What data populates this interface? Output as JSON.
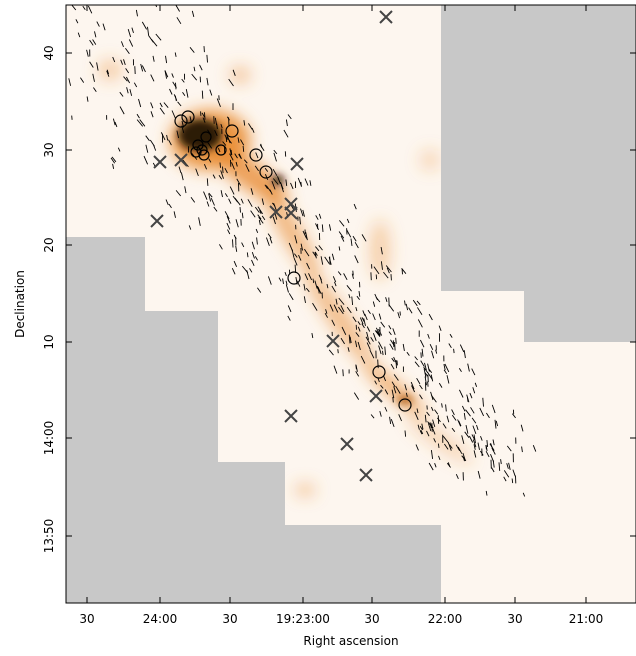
{
  "figure": {
    "x_axis": {
      "label": "Right ascension",
      "ticks": [
        "30",
        "24:00",
        "30",
        "19:23:00",
        "30",
        "22:00",
        "30",
        "21:00"
      ]
    },
    "y_axis": {
      "label": "Declination",
      "ticks": [
        "40",
        "30",
        "20",
        "10",
        "14:00",
        "13:50"
      ]
    }
  }
}
